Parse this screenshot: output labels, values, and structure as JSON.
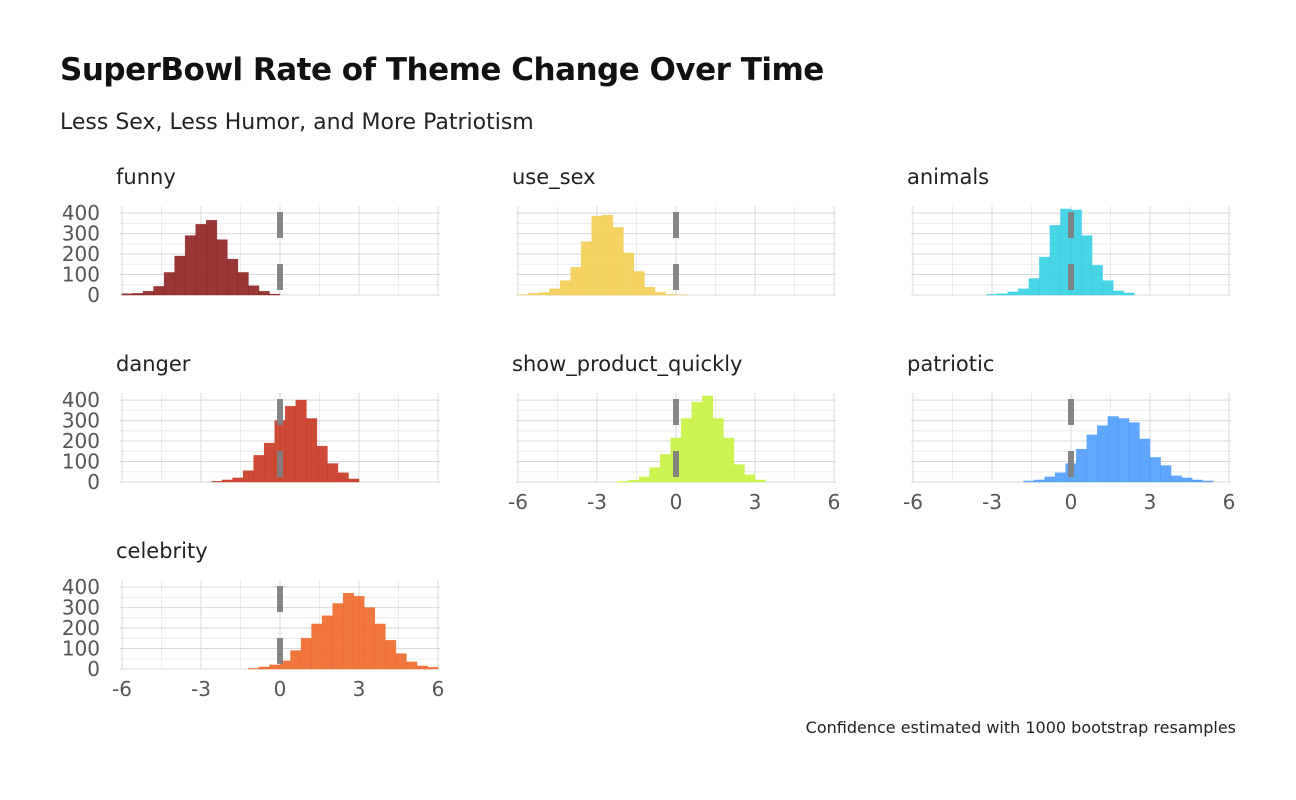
{
  "chart_data": {
    "type": "bar",
    "title": "SuperBowl Rate of Theme Change Over Time",
    "subtitle": "Less Sex, Less Humor, and More Patriotism",
    "caption": "Confidence estimated with 1000 bootstrap resamples",
    "xlim": [
      -6,
      6
    ],
    "ylim": [
      0,
      420
    ],
    "x_ticks": [
      -6,
      -3,
      0,
      3,
      6
    ],
    "x_tick_labels": [
      "-6",
      "-3",
      "0",
      "3",
      "6"
    ],
    "y_ticks": [
      0,
      100,
      200,
      300,
      400
    ],
    "y_tick_labels": [
      "0",
      "100",
      "200",
      "300",
      "400"
    ],
    "reference_line": {
      "x": 0,
      "style": "dashed",
      "color": "#7f7f7f"
    },
    "grid": true,
    "bin_width": 0.4,
    "facets": [
      {
        "name": "funny",
        "color": "#8b1a1a",
        "bin_start": -6.0,
        "counts": [
          6,
          8,
          18,
          42,
          110,
          190,
          290,
          345,
          365,
          270,
          175,
          110,
          45,
          18,
          4
        ]
      },
      {
        "name": "use_sex",
        "color": "#f2cc4f",
        "bin_start": -6.0,
        "counts": [
          2,
          8,
          12,
          30,
          70,
          135,
          260,
          385,
          390,
          330,
          205,
          115,
          38,
          14,
          3,
          1
        ]
      },
      {
        "name": "animals",
        "color": "#2fcfe3",
        "bin_start": -3.2,
        "counts": [
          3,
          6,
          15,
          30,
          80,
          185,
          340,
          420,
          415,
          290,
          145,
          70,
          20,
          10
        ]
      },
      {
        "name": "danger",
        "color": "#c6321a",
        "bin_start": -2.6,
        "counts": [
          3,
          10,
          20,
          55,
          130,
          190,
          300,
          370,
          400,
          310,
          175,
          90,
          45,
          15
        ]
      },
      {
        "name": "show_product_quickly",
        "color": "#c5f23a",
        "bin_start": -2.2,
        "counts": [
          3,
          8,
          25,
          70,
          135,
          215,
          310,
          390,
          420,
          310,
          215,
          85,
          35,
          10
        ]
      },
      {
        "name": "patriotic",
        "color": "#4a9bff",
        "bin_start": -1.8,
        "counts": [
          5,
          10,
          25,
          45,
          90,
          160,
          230,
          275,
          320,
          310,
          290,
          210,
          120,
          80,
          30,
          20,
          10,
          5
        ]
      },
      {
        "name": "celebrity",
        "color": "#f06424",
        "bin_start": -1.2,
        "counts": [
          3,
          10,
          20,
          40,
          90,
          150,
          220,
          260,
          320,
          370,
          355,
          300,
          220,
          140,
          75,
          35,
          15,
          8
        ]
      }
    ]
  }
}
